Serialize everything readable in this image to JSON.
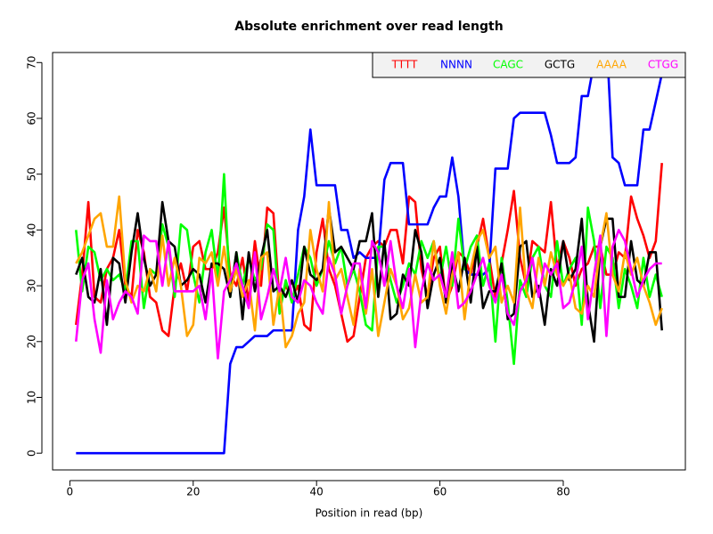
{
  "chart_data": {
    "type": "line",
    "title": "Absolute enrichment over read length",
    "x_label": "Position in read (bp)",
    "x": [
      1,
      2,
      3,
      4,
      5,
      6,
      7,
      8,
      9,
      10,
      11,
      12,
      13,
      14,
      15,
      16,
      17,
      18,
      19,
      20,
      21,
      22,
      23,
      24,
      25,
      26,
      27,
      28,
      29,
      30,
      31,
      32,
      33,
      34,
      35,
      36,
      37,
      38,
      39,
      40,
      41,
      42,
      43,
      44,
      45,
      46,
      47,
      48,
      49,
      50,
      51,
      52,
      53,
      54,
      55,
      56,
      57,
      58,
      59,
      60,
      61,
      62,
      63,
      64,
      65,
      66,
      67,
      68,
      69,
      70,
      71,
      72,
      73,
      74,
      75,
      76,
      77,
      78,
      79,
      80,
      81,
      82,
      83,
      84,
      85,
      86,
      87,
      88,
      89,
      90,
      91,
      92,
      93,
      94,
      95,
      96
    ],
    "series": [
      {
        "name": "TTTT",
        "color": "#ff0000",
        "values": [
          23,
          32,
          45,
          28,
          27,
          33,
          35,
          40,
          30,
          28,
          40,
          36,
          28,
          27,
          22,
          21,
          30,
          34,
          29,
          37,
          38,
          33,
          33,
          36,
          44,
          32,
          30,
          35,
          27,
          38,
          30,
          44,
          43,
          27,
          30,
          28,
          30,
          23,
          22,
          36,
          42,
          33,
          30,
          25,
          20,
          21,
          28,
          35,
          37,
          38,
          37,
          40,
          40,
          34,
          46,
          45,
          33,
          28,
          35,
          37,
          27,
          30,
          36,
          35,
          32,
          37,
          42,
          35,
          28,
          34,
          40,
          47,
          35,
          30,
          38,
          37,
          36,
          45,
          33,
          38,
          35,
          30,
          33,
          34,
          37,
          37,
          32,
          32,
          36,
          35,
          46,
          42,
          39,
          35,
          38,
          52
        ]
      },
      {
        "name": "NNNN",
        "color": "#0000ff",
        "values": [
          0,
          0,
          0,
          0,
          0,
          0,
          0,
          0,
          0,
          0,
          0,
          0,
          0,
          0,
          0,
          0,
          0,
          0,
          0,
          0,
          0,
          0,
          0,
          0,
          0,
          16,
          19,
          19,
          20,
          21,
          21,
          21,
          22,
          22,
          22,
          22,
          40,
          46,
          58,
          48,
          48,
          48,
          48,
          40,
          40,
          35,
          36,
          35,
          35,
          35,
          49,
          52,
          52,
          52,
          41,
          41,
          41,
          41,
          44,
          46,
          46,
          53,
          46,
          33,
          32,
          32,
          32,
          33,
          51,
          51,
          51,
          60,
          61,
          61,
          61,
          61,
          61,
          57,
          52,
          52,
          52,
          53,
          64,
          64,
          70,
          75,
          75,
          53,
          52,
          48,
          48,
          48,
          58,
          58,
          63,
          68
        ]
      },
      {
        "name": "CAGC",
        "color": "#00ff00",
        "values": [
          40,
          29,
          37,
          36,
          31,
          33,
          31,
          32,
          29,
          38,
          38,
          26,
          33,
          32,
          41,
          37,
          28,
          41,
          40,
          32,
          27,
          36,
          40,
          31,
          50,
          28,
          36,
          30,
          35,
          31,
          33,
          41,
          40,
          25,
          31,
          27,
          32,
          37,
          35,
          30,
          33,
          38,
          34,
          37,
          30,
          33,
          29,
          23,
          22,
          37,
          37,
          31,
          27,
          30,
          34,
          32,
          38,
          35,
          38,
          31,
          37,
          30,
          42,
          33,
          37,
          39,
          30,
          34,
          20,
          35,
          27,
          16,
          31,
          28,
          35,
          37,
          30,
          28,
          38,
          30,
          33,
          35,
          23,
          44,
          38,
          26,
          37,
          35,
          26,
          33,
          30,
          26,
          35,
          28,
          32,
          28
        ]
      },
      {
        "name": "GCTG",
        "color": "#000000",
        "values": [
          32,
          35,
          28,
          27,
          33,
          23,
          35,
          34,
          27,
          36,
          43,
          35,
          30,
          32,
          45,
          38,
          37,
          30,
          31,
          33,
          32,
          27,
          34,
          34,
          33,
          28,
          36,
          24,
          36,
          29,
          35,
          40,
          29,
          30,
          28,
          31,
          27,
          37,
          32,
          31,
          33,
          44,
          36,
          37,
          35,
          33,
          38,
          38,
          43,
          28,
          38,
          24,
          25,
          32,
          30,
          40,
          36,
          26,
          32,
          35,
          27,
          34,
          29,
          35,
          27,
          37,
          26,
          29,
          29,
          34,
          24,
          25,
          37,
          38,
          28,
          30,
          23,
          33,
          30,
          38,
          31,
          33,
          42,
          27,
          20,
          37,
          42,
          42,
          28,
          28,
          38,
          31,
          30,
          36,
          36,
          22
        ]
      },
      {
        "name": "AAAA",
        "color": "#ffa500",
        "values": [
          34,
          36,
          39,
          42,
          43,
          37,
          37,
          46,
          31,
          27,
          30,
          29,
          33,
          29,
          39,
          30,
          35,
          30,
          21,
          23,
          35,
          34,
          36,
          30,
          37,
          29,
          33,
          28,
          31,
          22,
          35,
          36,
          23,
          30,
          19,
          21,
          25,
          27,
          40,
          33,
          29,
          45,
          31,
          33,
          28,
          23,
          33,
          25,
          33,
          21,
          27,
          33,
          30,
          24,
          26,
          32,
          27,
          28,
          38,
          30,
          25,
          32,
          36,
          24,
          33,
          38,
          40,
          35,
          37,
          27,
          30,
          27,
          44,
          29,
          26,
          35,
          30,
          36,
          32,
          30,
          32,
          26,
          25,
          30,
          28,
          37,
          43,
          32,
          29,
          36,
          32,
          35,
          30,
          27,
          23,
          26
        ]
      },
      {
        "name": "CTGG",
        "color": "#ff00ff",
        "values": [
          20,
          31,
          34,
          24,
          18,
          31,
          24,
          27,
          29,
          28,
          25,
          39,
          38,
          38,
          30,
          38,
          29,
          29,
          29,
          29,
          30,
          24,
          33,
          17,
          29,
          31,
          34,
          30,
          26,
          36,
          24,
          28,
          33,
          29,
          35,
          28,
          27,
          31,
          30,
          27,
          25,
          35,
          32,
          25,
          30,
          34,
          34,
          26,
          38,
          36,
          30,
          38,
          30,
          26,
          33,
          19,
          29,
          34,
          31,
          32,
          28,
          36,
          26,
          27,
          29,
          32,
          35,
          30,
          27,
          32,
          25,
          23,
          29,
          31,
          35,
          28,
          34,
          32,
          34,
          26,
          27,
          31,
          37,
          24,
          32,
          39,
          21,
          37,
          40,
          38,
          33,
          28,
          31,
          33,
          34,
          34
        ]
      }
    ],
    "xlim": [
      -2.8,
      99.8
    ],
    "ylim": [
      -3,
      71.8
    ],
    "xticks": [
      0,
      20,
      40,
      60,
      80
    ],
    "yticks": [
      0,
      10,
      20,
      30,
      40,
      50,
      60,
      70
    ],
    "legend": "topright",
    "grid": false
  }
}
